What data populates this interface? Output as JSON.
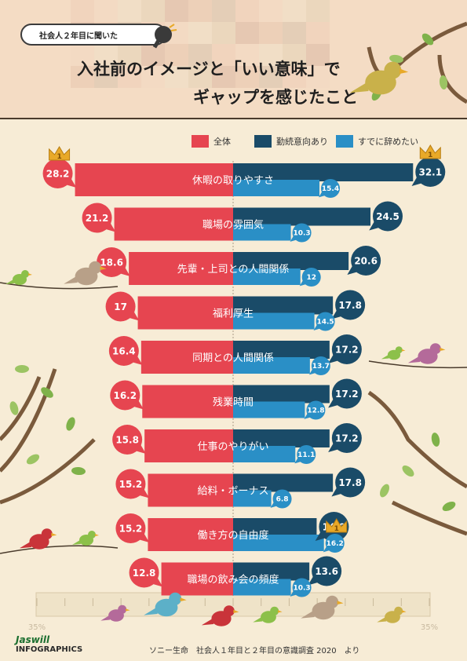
{
  "header": {
    "bubble_text": "社会人２年目に聞いた",
    "title_line1": "入社前のイメージと「いい意味」で",
    "title_line2": "ギャップを感じたこと"
  },
  "footer": {
    "source": "ソニー生命　社会人１年目と２年目の意識調査 2020　より",
    "brand_line1": "Jaswill",
    "brand_line2": "INFOGRAPHICS"
  },
  "colors": {
    "total": "#e64550",
    "continue": "#1a4b68",
    "quit": "#2a8fc6",
    "background": "#f7ecd6",
    "crown": "#e8a928"
  },
  "chart_data": {
    "type": "bar",
    "categories": [
      "休暇の取りやすさ",
      "職場の雰囲気",
      "先輩・上司との人間関係",
      "福利厚生",
      "同期との人間関係",
      "残業時間",
      "仕事のやりがい",
      "給料・ボーナス",
      "働き方の自由度",
      "職場の飲み会の頻度"
    ],
    "series": [
      {
        "name": "全体",
        "values": [
          28.2,
          21.2,
          18.6,
          17,
          16.4,
          16.2,
          15.8,
          15.2,
          15.2,
          12.8
        ]
      },
      {
        "name": "勤続意向あり",
        "values": [
          32.1,
          24.5,
          20.6,
          17.8,
          17.2,
          17.2,
          17.2,
          17.8,
          14.9,
          13.6
        ]
      },
      {
        "name": "すでに辞めたい",
        "values": [
          15.4,
          10.3,
          12,
          14.5,
          13.7,
          12.8,
          11.1,
          6.8,
          16.2,
          10.3
        ]
      }
    ],
    "axis_label_left": "35%",
    "axis_label_right": "35%",
    "xlim": [
      0,
      35
    ],
    "crowns": [
      {
        "series": "全体",
        "category": "休暇の取りやすさ",
        "rank": "1"
      },
      {
        "series": "勤続意向あり",
        "category": "休暇の取りやすさ",
        "rank": "1"
      },
      {
        "series": "すでに辞めたい",
        "category": "働き方の自由度",
        "rank": "1"
      }
    ]
  }
}
